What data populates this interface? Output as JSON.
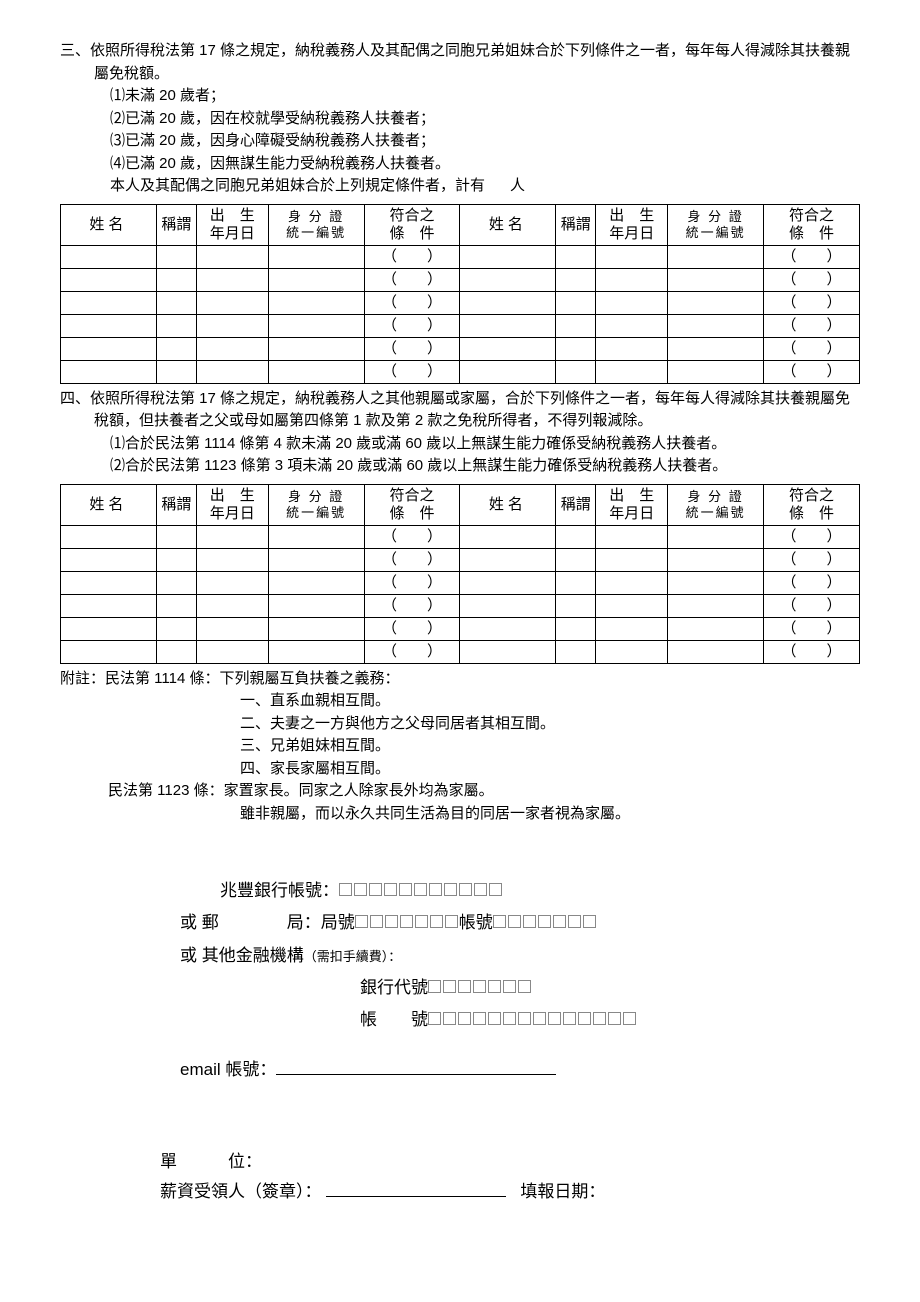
{
  "section3": {
    "heading": "三、依照所得稅法第 17 條之規定，納稅義務人及其配偶之同胞兄弟姐妹合於下列條件之一者，每年每人得減除其扶養親屬免稅額。",
    "items": [
      "⑴未滿 20 歲者；",
      "⑵已滿 20 歲，因在校就學受納稅義務人扶養者；",
      "⑶已滿 20 歲，因身心障礙受納稅義務人扶養者；",
      "⑷已滿 20 歲，因無謀生能力受納稅義務人扶養者。"
    ],
    "summary_prefix": "本人及其配偶之同胞兄弟姐妹合於上列規定條件者，計有",
    "summary_suffix": "人"
  },
  "table_headers": {
    "name": "姓名",
    "relation": "稱謂",
    "dob_l1": "出　生",
    "dob_l2": "年月日",
    "id_l1": "身 分 證",
    "id_l2": "統一編號",
    "cond_l1": "符合之",
    "cond_l2": "條　件"
  },
  "cond_cell": "（　　）",
  "section4": {
    "heading": "四、依照所得稅法第 17 條之規定，納稅義務人之其他親屬或家屬，合於下列條件之一者，每年每人得減除其扶養親屬免稅額，但扶養者之父或母如屬第四條第 1 款及第 2 款之免稅所得者，不得列報減除。",
    "items": [
      "⑴合於民法第 1114 條第 4 款未滿 20 歲或滿 60 歲以上無謀生能力確係受納稅義務人扶養者。",
      "⑵合於民法第 1123 條第 3 項未滿 20 歲或滿 60 歲以上無謀生能力確係受納稅義務人扶養者。"
    ]
  },
  "notes": {
    "lead": "附註：民法第 1114 條：下列親屬互負扶養之義務：",
    "n1": "一、直系血親相互間。",
    "n2": "二、夫妻之一方與他方之父母同居者其相互間。",
    "n3": "三、兄弟姐妹相互間。",
    "n4": "四、家長家屬相互間。",
    "l1123a": "民法第 1123 條：家置家長。同家之人除家長外均為家屬。",
    "l1123b": "雖非親屬，而以永久共同生活為目的同居一家者視為家屬。"
  },
  "bank": {
    "mega_label": "兆豐銀行帳號：",
    "mega_boxes": 11,
    "or": "或",
    "post_label": "郵　　　　局：局號",
    "post_branch_boxes": 7,
    "post_acct_label": "帳號",
    "post_acct_boxes": 7,
    "other_label": "其他金融機構",
    "other_note": "（需扣手續費）：",
    "bank_code_label": "銀行代號",
    "bank_code_boxes": 7,
    "acct_label": "帳　　號",
    "acct_boxes": 14,
    "email_label": "email 帳號："
  },
  "sign": {
    "unit_label": "單　　　位：",
    "payee_label": "薪資受領人（簽章）：",
    "date_label": "填報日期："
  },
  "style": {
    "col_widths": {
      "name": "12%",
      "rel": "5%",
      "dob": "9%",
      "id": "12%",
      "cond": "12%"
    }
  }
}
